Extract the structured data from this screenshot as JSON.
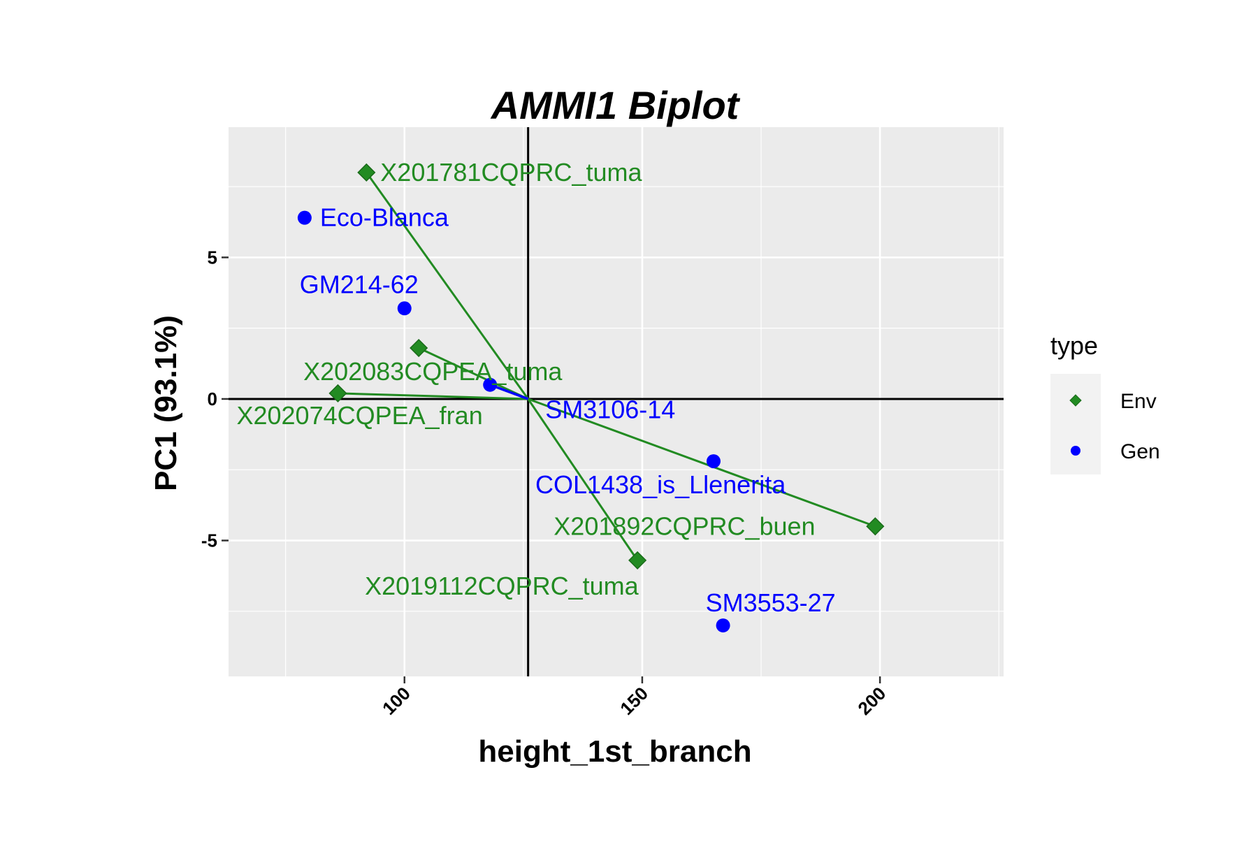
{
  "chart_data": {
    "type": "scatter",
    "title": "AMMI1 Biplot",
    "xlabel": "height_1st_branch",
    "ylabel": "PC1 (93.1%)",
    "xlim": [
      63,
      226
    ],
    "ylim": [
      -9.8,
      9.6
    ],
    "x_ticks": [
      100,
      150,
      200
    ],
    "y_ticks": [
      -5,
      0,
      5
    ],
    "x_tick_labels": [
      "100",
      "150",
      "200"
    ],
    "y_tick_labels": [
      "-5",
      "0",
      "5"
    ],
    "grid": true,
    "origin": {
      "x": 126.0,
      "y": 0
    },
    "legend": {
      "title": "type",
      "position": "right",
      "entries": [
        {
          "label": "Env",
          "color": "#228B22",
          "marker": "diamond"
        },
        {
          "label": "Gen",
          "color": "#0000FF",
          "marker": "circle"
        }
      ]
    },
    "colors": {
      "Env": "#228B22",
      "Gen": "#0000FF",
      "panel": "#EBEBEB",
      "grid": "#FFFFFF",
      "axis_line": "#000000"
    },
    "series": [
      {
        "name": "Env",
        "points": [
          {
            "label": "X201781CQPRC_tuma",
            "x": 92,
            "y": 8.0
          },
          {
            "label": "X202083CQPEA_tuma",
            "x": 103,
            "y": 1.8
          },
          {
            "label": "X202074CQPEA_fran",
            "x": 86,
            "y": 0.2
          },
          {
            "label": "X201892CQPRC_buen",
            "x": 199,
            "y": -4.5
          },
          {
            "label": "X2019112CQPRC_tuma",
            "x": 149,
            "y": -5.7
          }
        ]
      },
      {
        "name": "Gen",
        "points": [
          {
            "label": "Eco-Blanca",
            "x": 79,
            "y": 6.4
          },
          {
            "label": "GM214-62",
            "x": 100,
            "y": 3.2
          },
          {
            "label": "SM3106-14",
            "x": 118,
            "y": 0.5
          },
          {
            "label": "COL1438_is_Llenerita",
            "x": 165,
            "y": -2.2
          },
          {
            "label": "SM3553-27",
            "x": 167,
            "y": -8.0
          }
        ]
      }
    ]
  }
}
